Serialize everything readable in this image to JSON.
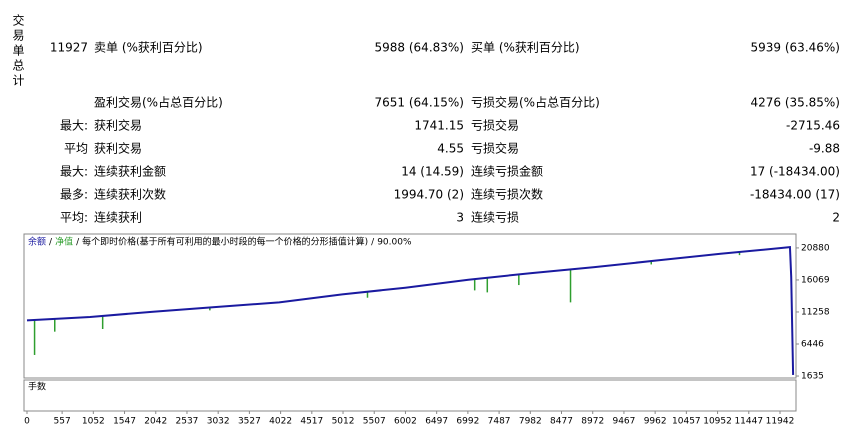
{
  "summary": {
    "side_label": "交易单总计",
    "rows": [
      {
        "label": "11927",
        "name1": "卖单 (%获利百分比)",
        "value1": "5988 (64.83%)",
        "name2": "买单 (%获利百分比)",
        "value2": "5939 (63.46%)"
      },
      {
        "name1": "盈利交易(%占总百分比)",
        "value1": "7651 (64.15%)",
        "name2": "亏损交易(%占总百分比)",
        "value2": "4276 (35.85%)"
      },
      {
        "label": "最大:",
        "name1": "获利交易",
        "value1": "1741.15",
        "name2": "亏损交易",
        "value2": "-2715.46"
      },
      {
        "label": "平均",
        "name1": "获利交易",
        "value1": "4.55",
        "name2": "亏损交易",
        "value2": "-9.88"
      },
      {
        "label": "最大:",
        "name1": "连续获利金额",
        "value1": "14 (14.59)",
        "name2": "连续亏损金额",
        "value2": "17 (-18434.00)"
      },
      {
        "label": "最多:",
        "name1": "连续获利次数",
        "value1": "1994.70 (2)",
        "name2": "连续亏损次数",
        "value2": "-18434.00 (17)"
      },
      {
        "label": "平均:",
        "name1": "连续获利",
        "value1": "3",
        "name2": "连续亏损",
        "value2": "2"
      }
    ]
  },
  "chart_data": {
    "type": "line",
    "legend": [
      {
        "name": "余额",
        "color": "#1a1aa0"
      },
      {
        "name": "净值",
        "color": "#2e9e2e"
      }
    ],
    "separator": "/",
    "note": "每个即时价格(基于所有可利用的最小时段的每一个价格的分形插值计算)",
    "quality": "90.00%",
    "x": [
      0,
      1000,
      2000,
      3000,
      4000,
      5000,
      6000,
      7000,
      8000,
      9000,
      10000,
      11000,
      12000,
      12100,
      12120,
      12150
    ],
    "values": [
      10000,
      10500,
      11300,
      12000,
      12700,
      13900,
      14900,
      16100,
      17100,
      18000,
      19000,
      20000,
      20900,
      21000,
      16500,
      1800
    ],
    "equity_dips": {
      "x": [
        120,
        440,
        1200,
        2900,
        5400,
        7100,
        7300,
        7800,
        8620,
        9900,
        11300
      ],
      "values": [
        4800,
        8300,
        8700,
        11500,
        13400,
        14500,
        14200,
        15300,
        12700,
        18400,
        19800
      ]
    },
    "xlim": [
      0,
      12180
    ],
    "ylim": [
      1340,
      22820
    ],
    "yticks": [
      20880,
      16069,
      11258,
      6446,
      1635
    ],
    "xticks": [
      0,
      557,
      1052,
      1547,
      2042,
      2537,
      3032,
      3527,
      4022,
      4517,
      5012,
      5507,
      6002,
      6497,
      6992,
      7487,
      7982,
      8477,
      8972,
      9467,
      9962,
      10457,
      10952,
      11447,
      11942
    ],
    "lots_label": "手数"
  }
}
